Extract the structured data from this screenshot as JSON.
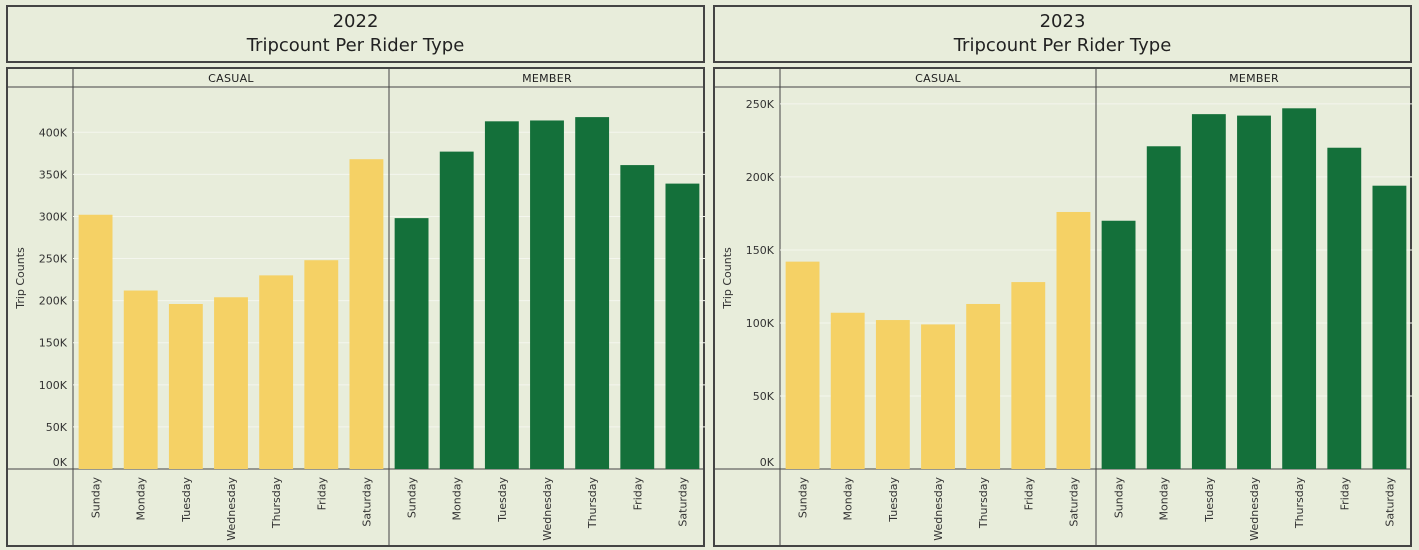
{
  "colors": {
    "casual": "#f5d165",
    "member": "#14703a",
    "background": "#e8eddb",
    "border": "#444444",
    "grid": "#f3f5ec"
  },
  "chart_data": [
    {
      "type": "bar",
      "title": "2022",
      "subtitle": "Tripcount Per Rider Type",
      "ylabel": "Trip Counts",
      "ylim": [
        0,
        430000
      ],
      "yticks": [
        0,
        50000,
        100000,
        150000,
        200000,
        250000,
        300000,
        350000,
        400000
      ],
      "ytick_labels": [
        "0K",
        "50K",
        "100K",
        "150K",
        "200K",
        "250K",
        "300K",
        "350K",
        "400K"
      ],
      "categories": [
        "Sunday",
        "Monday",
        "Tuesday",
        "Wednesday",
        "Thursday",
        "Friday",
        "Saturday"
      ],
      "grid": true,
      "series": [
        {
          "name": "CASUAL",
          "color": "#f5d165",
          "values": [
            302000,
            212000,
            196000,
            204000,
            230000,
            248000,
            368000
          ]
        },
        {
          "name": "MEMBER",
          "color": "#14703a",
          "values": [
            298000,
            377000,
            413000,
            414000,
            418000,
            361000,
            339000
          ]
        }
      ]
    },
    {
      "type": "bar",
      "title": "2023",
      "subtitle": "Tripcount Per Rider Type",
      "ylabel": "Trip Counts",
      "ylim": [
        0,
        252000
      ],
      "yticks": [
        0,
        50000,
        100000,
        150000,
        200000,
        250000
      ],
      "ytick_labels": [
        "0K",
        "50K",
        "100K",
        "150K",
        "200K",
        "250K"
      ],
      "categories": [
        "Sunday",
        "Monday",
        "Tuesday",
        "Wednesday",
        "Thursday",
        "Friday",
        "Saturday"
      ],
      "grid": true,
      "series": [
        {
          "name": "CASUAL",
          "color": "#f5d165",
          "values": [
            142000,
            107000,
            102000,
            99000,
            113000,
            128000,
            176000
          ]
        },
        {
          "name": "MEMBER",
          "color": "#14703a",
          "values": [
            170000,
            221000,
            243000,
            242000,
            247000,
            220000,
            194000
          ]
        }
      ]
    }
  ]
}
